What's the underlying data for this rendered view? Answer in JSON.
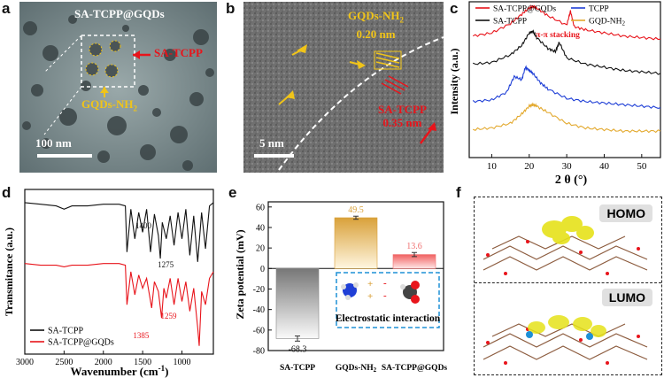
{
  "panel_labels": {
    "a": "a",
    "b": "b",
    "c": "c",
    "d": "d",
    "e": "e",
    "f": "f"
  },
  "panel_a": {
    "title": "SA-TCPP@GQDs",
    "arrow_label_1": "SA-TCPP",
    "arrow_label_2": "GQDs-NH",
    "arrow_label_2_sub": "2",
    "scale_bar": "100 nm"
  },
  "panel_b": {
    "label_1_line1": "GQDs-NH",
    "label_1_sub": "2",
    "label_1_line2": "0.20 nm",
    "label_2_line1": "SA-TCPP",
    "label_2_line2": "0.35 nm",
    "scale_bar": "5 nm"
  },
  "panel_f": {
    "label_top": "HOMO",
    "label_bottom": "LUMO"
  },
  "colors": {
    "red": "#e8141b",
    "black": "#111111",
    "blue": "#1f3fd6",
    "gold": "#e3a92e",
    "yellow_label": "#f0c419"
  },
  "chart_data": [
    {
      "id": "c",
      "type": "line",
      "xlabel": "2 θ (°)",
      "ylabel": "Intensity (a.u.)",
      "xlim": [
        4,
        55
      ],
      "xticks": [
        10,
        20,
        30,
        40,
        50
      ],
      "annotation": "π-π stacking",
      "legend": [
        {
          "name": "SA-TCPP@GQDs",
          "color": "#e8141b"
        },
        {
          "name": "TCPP",
          "color": "#1f3fd6"
        },
        {
          "name": "SA-TCPP",
          "color": "#111111"
        },
        {
          "name": "GQD-NH",
          "sub": "2",
          "color": "#e3a92e"
        }
      ],
      "series": [
        {
          "name": "SA-TCPP@GQDs",
          "color": "#e8141b",
          "x": [
            5,
            10,
            15,
            18,
            20,
            21,
            22,
            25,
            30,
            31,
            32,
            35,
            40,
            45,
            50,
            55
          ],
          "y": [
            0.78,
            0.8,
            0.86,
            0.92,
            0.96,
            0.97,
            0.96,
            0.91,
            0.85,
            0.94,
            0.84,
            0.82,
            0.8,
            0.78,
            0.77,
            0.76
          ]
        },
        {
          "name": "SA-TCPP",
          "color": "#111111",
          "x": [
            5,
            10,
            15,
            18,
            20,
            21,
            22,
            25,
            27,
            28,
            30,
            35,
            40,
            45,
            50,
            55
          ],
          "y": [
            0.6,
            0.61,
            0.66,
            0.72,
            0.8,
            0.81,
            0.77,
            0.7,
            0.68,
            0.74,
            0.64,
            0.6,
            0.58,
            0.56,
            0.55,
            0.54
          ]
        },
        {
          "name": "TCPP",
          "color": "#1f3fd6",
          "x": [
            5,
            10,
            14,
            16,
            18,
            19,
            20,
            21,
            23,
            25,
            30,
            35,
            40,
            45,
            50,
            55
          ],
          "y": [
            0.36,
            0.37,
            0.42,
            0.52,
            0.5,
            0.58,
            0.56,
            0.54,
            0.48,
            0.44,
            0.38,
            0.36,
            0.35,
            0.34,
            0.33,
            0.32
          ]
        },
        {
          "name": "GQD-NH2",
          "color": "#e3a92e",
          "x": [
            5,
            10,
            15,
            18,
            20,
            21,
            22,
            25,
            30,
            35,
            40,
            45,
            50,
            55
          ],
          "y": [
            0.18,
            0.19,
            0.22,
            0.28,
            0.33,
            0.34,
            0.33,
            0.29,
            0.22,
            0.19,
            0.18,
            0.17,
            0.17,
            0.17
          ]
        }
      ]
    },
    {
      "id": "d",
      "type": "line",
      "xlabel": "Wavenumber (cm",
      "xlabel_sup": "-1",
      "xlabel_end": ")",
      "ylabel": "Transmitance (a.u.)",
      "xlim": [
        3000,
        600
      ],
      "xticks": [
        3000,
        2500,
        2000,
        1500,
        1000
      ],
      "annotations": [
        {
          "text": "1400",
          "x": 1400,
          "color": "#111111"
        },
        {
          "text": "1275",
          "x": 1275,
          "color": "#111111"
        },
        {
          "text": "1385",
          "x": 1385,
          "color": "#e8141b"
        },
        {
          "text": "1259",
          "x": 1259,
          "color": "#e8141b"
        }
      ],
      "legend": [
        {
          "name": "SA-TCPP",
          "color": "#111111"
        },
        {
          "name": "SA-TCPP@GQDs",
          "color": "#e8141b"
        }
      ],
      "series": [
        {
          "name": "SA-TCPP",
          "color": "#111111",
          "x": [
            3000,
            2800,
            2600,
            2500,
            2400,
            2200,
            2000,
            1800,
            1720,
            1700,
            1650,
            1600,
            1550,
            1500,
            1450,
            1400,
            1350,
            1300,
            1275,
            1250,
            1200,
            1150,
            1100,
            1050,
            1000,
            950,
            900,
            850,
            800,
            750,
            700,
            650,
            600
          ],
          "y": [
            0.92,
            0.91,
            0.9,
            0.88,
            0.9,
            0.9,
            0.91,
            0.91,
            0.9,
            0.62,
            0.88,
            0.7,
            0.86,
            0.74,
            0.88,
            0.62,
            0.85,
            0.72,
            0.58,
            0.8,
            0.7,
            0.84,
            0.66,
            0.86,
            0.7,
            0.88,
            0.6,
            0.84,
            0.56,
            0.86,
            0.64,
            0.9,
            0.92
          ]
        },
        {
          "name": "SA-TCPP@GQDs",
          "color": "#e8141b",
          "x": [
            3000,
            2800,
            2600,
            2500,
            2400,
            2200,
            2000,
            1800,
            1720,
            1700,
            1650,
            1600,
            1550,
            1500,
            1450,
            1385,
            1350,
            1300,
            1259,
            1230,
            1200,
            1150,
            1100,
            1050,
            1000,
            950,
            900,
            850,
            800,
            780,
            750,
            700,
            650,
            600
          ],
          "y": [
            0.55,
            0.54,
            0.54,
            0.53,
            0.54,
            0.54,
            0.55,
            0.55,
            0.54,
            0.3,
            0.5,
            0.36,
            0.48,
            0.4,
            0.46,
            0.28,
            0.44,
            0.38,
            0.22,
            0.4,
            0.34,
            0.46,
            0.3,
            0.46,
            0.32,
            0.44,
            0.26,
            0.4,
            0.16,
            0.05,
            0.38,
            0.3,
            0.46,
            0.5
          ]
        }
      ]
    },
    {
      "id": "e",
      "type": "bar",
      "ylabel": "Zeta potential (mV)",
      "ylim": [
        -80,
        65
      ],
      "yticks": [
        60,
        40,
        20,
        0,
        -20,
        -40,
        -60,
        -80
      ],
      "categories": [
        "SA-TCPP",
        "GQDs-NH2",
        "SA-TCPP@GQDs"
      ],
      "category_labels": [
        {
          "main": "SA-TCPP"
        },
        {
          "main": "GQDs-NH",
          "sub": "2"
        },
        {
          "main": "SA-TCPP@GQDs"
        }
      ],
      "values": [
        -68.3,
        49.5,
        13.6
      ],
      "value_labels": [
        "-68.3",
        "49.5",
        "13.6"
      ],
      "errors": [
        2.5,
        1.5,
        2.0
      ],
      "colors": [
        "#888888",
        "#d9a13a",
        "#f07070"
      ],
      "inset_caption": "Electrostatic interaction"
    }
  ]
}
